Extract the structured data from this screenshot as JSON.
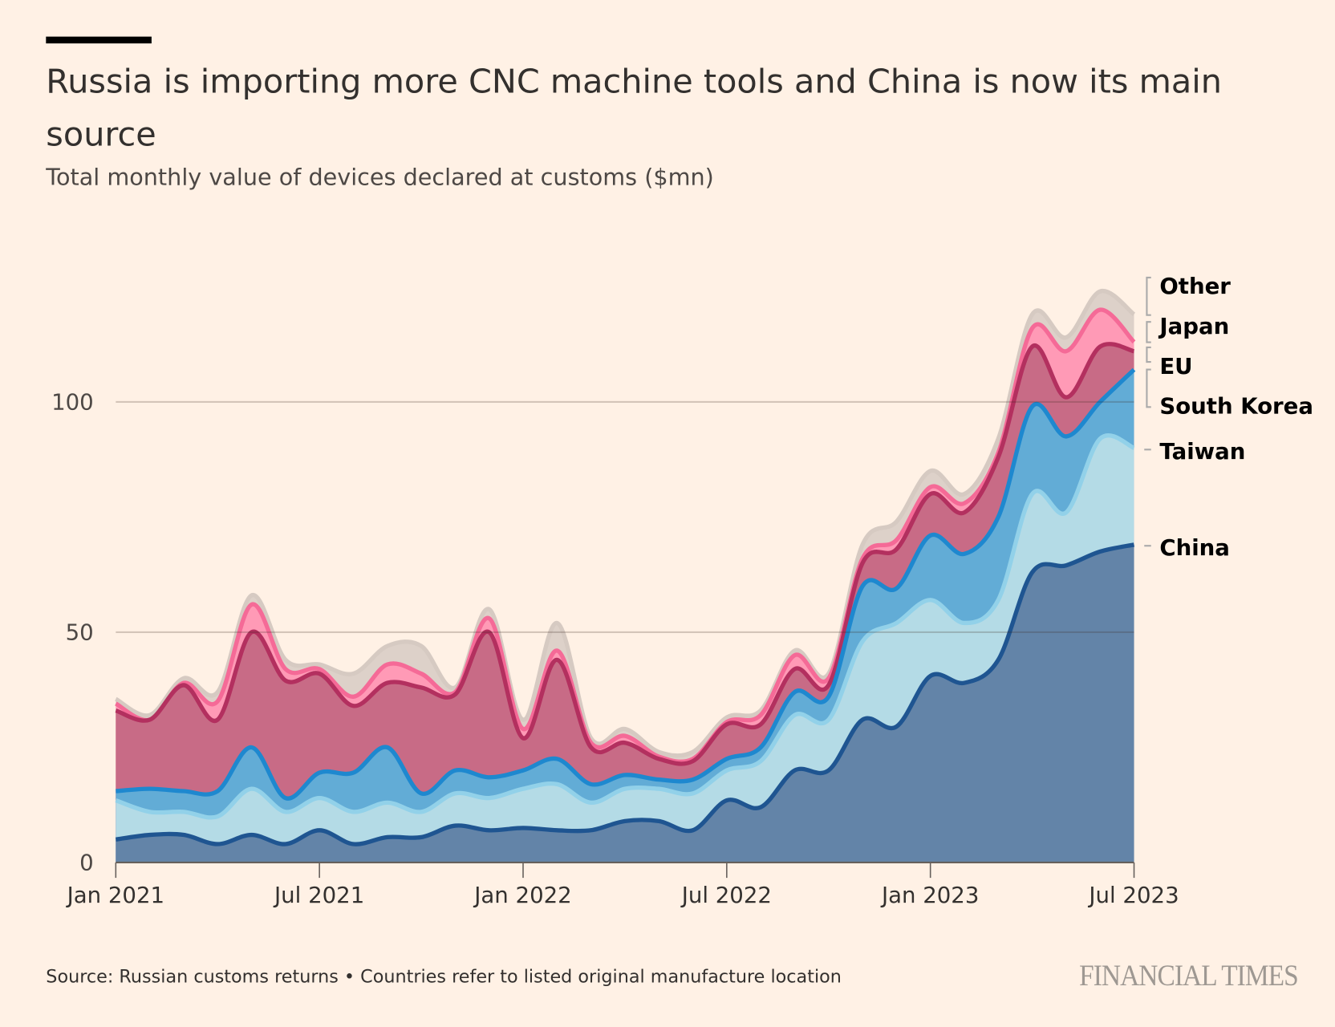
{
  "header": {
    "title": "Russia is importing more CNC machine tools and China is now its main source",
    "subtitle": "Total monthly value of devices declared at customs ($mn)"
  },
  "footer": {
    "source": "Source: Russian customs returns • Countries refer to listed original manufacture location",
    "logo": "FINANCIAL TIMES"
  },
  "chart_data": {
    "type": "area",
    "stacked": true,
    "title": "Russia is importing more CNC machine tools and China is now its main source",
    "ylabel": "Total monthly value of devices declared at customs ($mn)",
    "xlabel": "",
    "ylim": [
      0,
      125
    ],
    "yticks": [
      0,
      50,
      100
    ],
    "ytick_labels": [
      "0",
      "50",
      "100"
    ],
    "xtick_labels": [
      "Jan 2021",
      "Jul 2021",
      "Jan 2022",
      "Jul 2022",
      "Jan 2023",
      "Jul 2023"
    ],
    "xtick_index": [
      0,
      6,
      12,
      18,
      24,
      30
    ],
    "x": [
      "2021-01",
      "2021-02",
      "2021-03",
      "2021-04",
      "2021-05",
      "2021-06",
      "2021-07",
      "2021-08",
      "2021-09",
      "2021-10",
      "2021-11",
      "2021-12",
      "2022-01",
      "2022-02",
      "2022-03",
      "2022-04",
      "2022-05",
      "2022-06",
      "2022-07",
      "2022-08",
      "2022-09",
      "2022-10",
      "2022-11",
      "2022-12",
      "2023-01",
      "2023-02",
      "2023-03",
      "2023-04",
      "2023-05",
      "2023-06",
      "2023-07"
    ],
    "grid": true,
    "legend": "right, direct labels",
    "series": [
      {
        "name": "China",
        "fill": "#6384a8",
        "line": "#1f5591",
        "values": [
          5,
          6,
          6,
          4,
          6,
          4,
          7,
          4,
          5.5,
          5.5,
          8,
          7,
          7.5,
          7,
          7,
          9,
          9,
          7,
          13.5,
          12,
          20,
          20,
          31,
          29.5,
          40.5,
          39,
          44,
          63,
          64.5,
          67.5,
          69
        ]
      },
      {
        "name": "Taiwan",
        "fill": "#b4dbe6",
        "line": "#92d1e9",
        "values": [
          8.5,
          5,
          5,
          6,
          10,
          7,
          7,
          7,
          7.5,
          5.5,
          7,
          7,
          8.5,
          10,
          6,
          7,
          7,
          8,
          6.5,
          10,
          12,
          11,
          17,
          22.5,
          16.5,
          13,
          13,
          17,
          11.5,
          24.5,
          21
        ]
      },
      {
        "name": "South Korea",
        "fill": "#62acd6",
        "line": "#1e88cf",
        "values": [
          2,
          5,
          4.5,
          5.5,
          9,
          3,
          5.5,
          8.5,
          12,
          4,
          5,
          4.5,
          4,
          5.5,
          4,
          3,
          2,
          3,
          2.5,
          3,
          5,
          5,
          12,
          7.5,
          14,
          15,
          18,
          19,
          16.5,
          8,
          17
        ]
      },
      {
        "name": "EU",
        "fill": "#c86b86",
        "line": "#b3305f",
        "values": [
          17.5,
          15,
          23,
          15.5,
          25,
          25.5,
          21.5,
          14.5,
          14,
          23,
          16.5,
          31.5,
          7,
          21.5,
          8,
          7,
          4.5,
          4,
          7.5,
          5,
          5,
          2.5,
          5,
          8.5,
          9,
          9,
          13,
          13,
          8.5,
          12,
          4
        ]
      },
      {
        "name": "Japan",
        "fill": "#ff9ab6",
        "line": "#f56a97",
        "values": [
          1.5,
          0,
          0.5,
          4,
          6,
          2.5,
          1,
          2,
          4,
          3,
          0.5,
          3,
          2,
          2,
          1,
          1.5,
          0.5,
          0.5,
          0.5,
          2,
          3,
          1.5,
          1,
          2,
          1.5,
          2,
          1,
          4,
          10,
          8,
          2
        ]
      },
      {
        "name": "Other",
        "fill": "#ddd1c9",
        "line": "#d6cac2",
        "values": [
          1,
          1,
          1,
          2,
          2,
          2,
          1,
          5,
          4,
          6,
          1,
          2,
          2,
          6,
          1,
          1.5,
          1,
          1.5,
          1,
          1,
          1,
          1,
          3,
          4,
          3.5,
          2,
          3,
          3,
          3,
          4,
          6
        ]
      }
    ]
  }
}
